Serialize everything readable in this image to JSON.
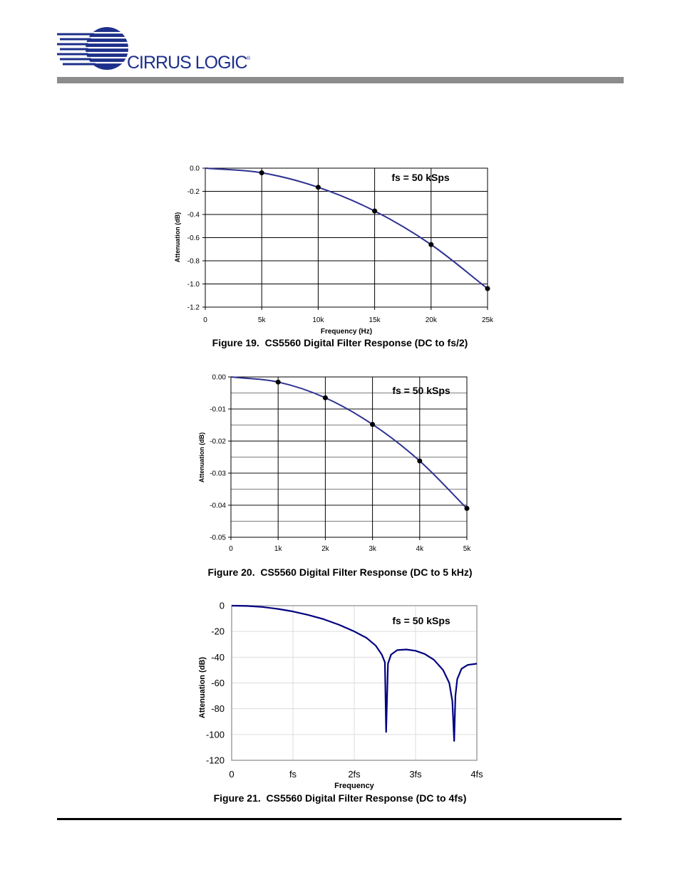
{
  "header": {
    "logo_text": "CIRRUS LOGIC",
    "logo_reg": "®"
  },
  "figures": [
    {
      "caption": "Figure 19.  CS5560 Digital Filter Response (DC to fs/2)",
      "annotation": "fs = 50 kSps"
    },
    {
      "caption": "Figure 20.  CS5560 Digital Filter Response (DC to 5 kHz)",
      "annotation": "fs = 50 kSps"
    },
    {
      "caption": "Figure 21.  CS5560 Digital Filter Response (DC to 4fs)",
      "annotation": "fs = 50 kSps"
    }
  ],
  "chart_data": [
    {
      "type": "line",
      "title": "",
      "xlabel": "Frequency (Hz)",
      "ylabel": "Attenuation (dB)",
      "xlim": [
        0,
        25000
      ],
      "ylim": [
        -1.2,
        0.0
      ],
      "x_ticks": [
        0,
        5000,
        10000,
        15000,
        20000,
        25000
      ],
      "x_tick_labels": [
        "0",
        "5k",
        "10k",
        "15k",
        "20k",
        "25k"
      ],
      "y_ticks": [
        0.0,
        -0.2,
        -0.4,
        -0.6,
        -0.8,
        -1.0,
        -1.2
      ],
      "y_tick_labels": [
        "0.0",
        "-0.2",
        "-0.4",
        "-0.6",
        "-0.8",
        "-1.0",
        "-1.2"
      ],
      "grid": true,
      "series": [
        {
          "x": [
            0,
            5000,
            10000,
            15000,
            20000,
            25000
          ],
          "y": [
            0.0,
            -0.04,
            -0.165,
            -0.37,
            -0.66,
            -1.04
          ],
          "markers": [
            5000,
            10000,
            15000,
            20000,
            25000
          ],
          "color": "#2e3192"
        }
      ]
    },
    {
      "type": "line",
      "title": "",
      "xlabel": "",
      "ylabel": "Attenuation (dB)",
      "xlim": [
        0,
        5000
      ],
      "ylim": [
        -0.05,
        0.0
      ],
      "x_ticks": [
        0,
        1000,
        2000,
        3000,
        4000,
        5000
      ],
      "x_tick_labels": [
        "0",
        "1k",
        "2k",
        "3k",
        "4k",
        "5k"
      ],
      "y_ticks": [
        0.0,
        -0.01,
        -0.02,
        -0.03,
        -0.04,
        -0.05
      ],
      "y_tick_labels": [
        "0.00",
        "-0.01",
        "-0.02",
        "-0.03",
        "-0.04",
        "-0.05"
      ],
      "grid": true,
      "series": [
        {
          "x": [
            0,
            1000,
            2000,
            3000,
            4000,
            5000
          ],
          "y": [
            0.0,
            -0.0016,
            -0.0065,
            -0.0148,
            -0.0262,
            -0.041
          ],
          "markers": [
            1000,
            2000,
            3000,
            4000,
            5000
          ],
          "color": "#2e3192"
        }
      ]
    },
    {
      "type": "line",
      "title": "",
      "xlabel": "Frequency",
      "ylabel": "Attenuation (dB)",
      "xlim": [
        0,
        4
      ],
      "ylim": [
        -120,
        0
      ],
      "x_ticks": [
        0,
        1,
        2,
        3,
        4
      ],
      "x_tick_labels": [
        "0",
        "fs",
        "2fs",
        "3fs",
        "4fs"
      ],
      "y_ticks": [
        0,
        -20,
        -40,
        -60,
        -80,
        -100,
        -120
      ],
      "y_tick_labels": [
        "0",
        "-20",
        "-40",
        "-60",
        "-80",
        "-100",
        "-120"
      ],
      "grid": true,
      "series": [
        {
          "x": [
            0,
            0.25,
            0.5,
            0.75,
            1.0,
            1.25,
            1.5,
            1.75,
            2.0,
            2.2,
            2.35,
            2.45,
            2.5,
            2.52,
            2.55,
            2.6,
            2.7,
            2.85,
            3.0,
            3.15,
            3.3,
            3.45,
            3.55,
            3.6,
            3.63,
            3.65,
            3.68,
            3.75,
            3.85,
            4.0
          ],
          "y": [
            0,
            -0.2,
            -1,
            -2.5,
            -4.5,
            -7.2,
            -10.5,
            -14.8,
            -20,
            -25,
            -31,
            -38,
            -44,
            -98,
            -45,
            -38,
            -34.5,
            -34,
            -35,
            -37.5,
            -42,
            -50,
            -60,
            -74,
            -105,
            -70,
            -57,
            -49,
            -46,
            -45
          ],
          "markers": [],
          "color": "#000080"
        }
      ]
    }
  ]
}
